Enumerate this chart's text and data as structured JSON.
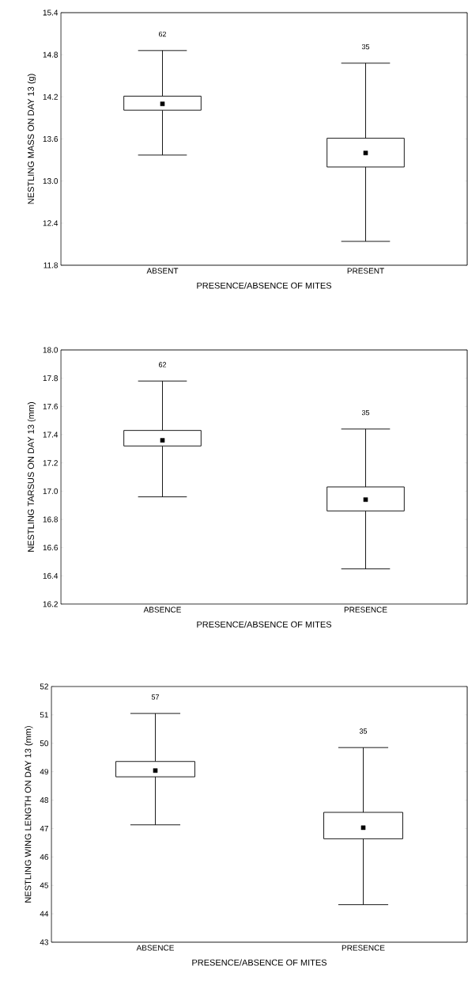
{
  "chart_data": [
    {
      "type": "box",
      "categories": [
        "ABSENT",
        "PRESENT"
      ],
      "xlabel": "PRESENCE/ABSENCE OF MITES",
      "ylabel": "NESTLING MASS ON DAY 13 (g)",
      "ylim": [
        11.8,
        15.4
      ],
      "yticks": [
        11.8,
        12.4,
        {
          "value": 13,
          "label": "13.0"
        },
        13.6,
        14.2,
        14.8,
        15.4
      ],
      "marker": "square",
      "boxes": [
        {
          "low": 13.37,
          "q1": 14.01,
          "q3": 14.21,
          "high": 14.86,
          "mean": 14.1
        },
        {
          "low": 12.14,
          "q1": 13.2,
          "q3": 13.61,
          "high": 14.68,
          "mean": 13.4
        }
      ],
      "annotations": [
        "62",
        "35"
      ]
    },
    {
      "type": "box",
      "categories": [
        "ABSENCE",
        "PRESENCE"
      ],
      "xlabel": "PRESENCE/ABSENCE OF MITES",
      "ylabel": "NESTLING TARSUS ON DAY 13 (mm)",
      "ylim": [
        16.2,
        18
      ],
      "yticks": [
        16.2,
        16.4,
        16.6,
        16.8,
        {
          "value": 17,
          "label": "17.0"
        },
        17.2,
        17.4,
        17.6,
        17.8,
        {
          "value": 18,
          "label": "18.0"
        }
      ],
      "marker": "square",
      "boxes": [
        {
          "low": 16.96,
          "q1": 17.32,
          "q3": 17.43,
          "high": 17.78,
          "mean": 17.36
        },
        {
          "low": 16.45,
          "q1": 16.86,
          "q3": 17.03,
          "high": 17.44,
          "mean": 16.94
        }
      ],
      "annotations": [
        "62",
        "35"
      ]
    },
    {
      "type": "box",
      "categories": [
        "ABSENCE",
        "PRESENCE"
      ],
      "xlabel": "PRESENCE/ABSENCE OF MITES",
      "ylabel": "NESTLING WING LENGTH ON DAY 13 (mm)",
      "ylim": [
        43,
        52
      ],
      "yticks": [
        43,
        44,
        45,
        46,
        47,
        48,
        49,
        50,
        51,
        52
      ],
      "marker": "square",
      "boxes": [
        {
          "low": 47.13,
          "q1": 48.82,
          "q3": 49.36,
          "high": 51.05,
          "mean": 49.04
        },
        {
          "low": 44.32,
          "q1": 46.64,
          "q3": 47.57,
          "high": 49.85,
          "mean": 47.03
        }
      ],
      "annotations": [
        "57",
        "35"
      ]
    }
  ]
}
